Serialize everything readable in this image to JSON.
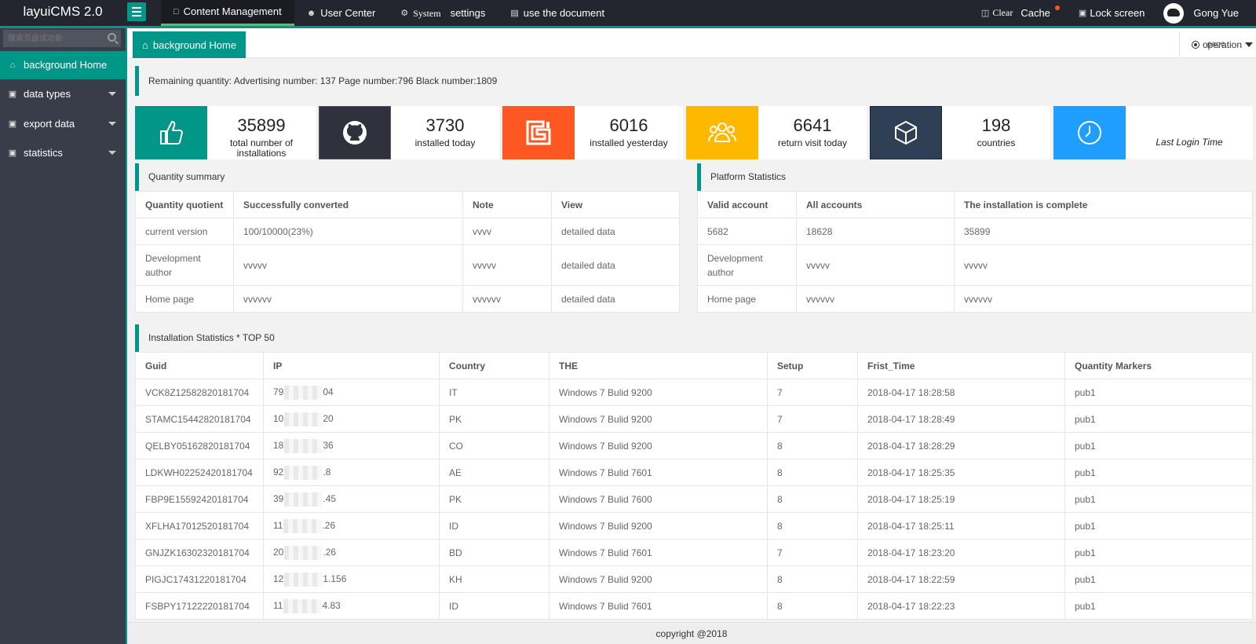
{
  "header": {
    "logo": "layuiCMS 2.0",
    "nav": [
      {
        "label": "Content Management",
        "icon": "document-icon"
      },
      {
        "label": "User Center",
        "icon": "users-icon"
      },
      {
        "label": "System",
        "label2": "settings",
        "icon": "gear-icon"
      },
      {
        "label": "use the document",
        "icon": "book-icon"
      }
    ],
    "clear_cache_prefix": "Clear",
    "clear_cache": "Cache",
    "lock_screen": "Lock screen",
    "user_name": "Gong Yue"
  },
  "sidebar": {
    "search_placeholder": "搜索页面或功能",
    "items": [
      {
        "label": "background Home",
        "icon": "home-icon"
      },
      {
        "label": "data types",
        "icon": "card-icon"
      },
      {
        "label": "export data",
        "icon": "card-icon"
      },
      {
        "label": "statistics",
        "icon": "card-icon"
      }
    ]
  },
  "tabs": {
    "home": "background Home",
    "operation": "operation",
    "operation_overlay": "page"
  },
  "notice": "Remaining quantity: Advertising number: 137 Page number:796 Black number:1809",
  "stats": [
    {
      "value": "35899",
      "label": "total number of installations",
      "color": "#009688",
      "icon": "thumbs-up-icon"
    },
    {
      "value": "3730",
      "label": "installed today",
      "color": "#2f4056",
      "icon": "github-icon"
    },
    {
      "value": "6016",
      "label": "installed yesterday",
      "color": "#ff5722",
      "icon": "logo-icon"
    },
    {
      "value": "6641",
      "label": "return visit today",
      "color": "#ffb800",
      "icon": "group-icon"
    },
    {
      "value": "198",
      "label": "countries",
      "color": "#2f4056",
      "icon": "cube-icon"
    },
    {
      "value": "",
      "label": "Last Login Time",
      "color": "#1e9fff",
      "icon": "clock-icon"
    }
  ],
  "quantity_summary": {
    "title": "Quantity summary",
    "headers": [
      "Quantity quotient",
      "Successfully converted",
      "Note",
      "View"
    ],
    "rows": [
      [
        "current version",
        "100/10000(23%)",
        "vvvv",
        "detailed data"
      ],
      [
        "Development author",
        "vvvvv",
        "vvvvv",
        "detailed data"
      ],
      [
        "Home page",
        "vvvvvv",
        "vvvvvv",
        "detailed data"
      ]
    ]
  },
  "platform_statistics": {
    "title": "Platform Statistics",
    "headers": [
      "Valid account",
      "All accounts",
      "The installation is complete"
    ],
    "rows": [
      [
        "5682",
        "18628",
        "35899"
      ],
      [
        "Development author",
        "vvvvv",
        "vvvvv"
      ],
      [
        "Home page",
        "vvvvvv",
        "vvvvvv"
      ]
    ]
  },
  "installation_stats": {
    "title": "Installation Statistics * TOP 50",
    "headers": [
      "Guid",
      "IP",
      "Country",
      "THE",
      "Setup",
      "Frist_Time",
      "Quantity Markers"
    ],
    "rows": [
      [
        "VCK8Z12582820181704",
        "79",
        "04",
        "IT",
        "Windows 7 Bulid 9200",
        "7",
        "2018-04-17 18:28:58",
        "pub1"
      ],
      [
        "STAMC15442820181704",
        "10",
        "20",
        "PK",
        "Windows 7 Bulid 9200",
        "7",
        "2018-04-17 18:28:49",
        "pub1"
      ],
      [
        "QELBY05162820181704",
        "18",
        "36",
        "CO",
        "Windows 7 Bulid 9200",
        "8",
        "2018-04-17 18:28:29",
        "pub1"
      ],
      [
        "LDKWH02252420181704",
        "92",
        ".8",
        "AE",
        "Windows 7 Bulid 7601",
        "8",
        "2018-04-17 18:25:35",
        "pub1"
      ],
      [
        "FBP9E15592420181704",
        "39",
        ".45",
        "PK",
        "Windows 7 Bulid 7600",
        "8",
        "2018-04-17 18:25:19",
        "pub1"
      ],
      [
        "XFLHA17012520181704",
        "11",
        ".26",
        "ID",
        "Windows 7 Bulid 9200",
        "8",
        "2018-04-17 18:25:11",
        "pub1"
      ],
      [
        "GNJZK16302320181704",
        "20",
        ".26",
        "BD",
        "Windows 7 Bulid 7601",
        "7",
        "2018-04-17 18:23:20",
        "pub1"
      ],
      [
        "PIGJC17431220181704",
        "12",
        "1.156",
        "KH",
        "Windows 7 Bulid 9200",
        "8",
        "2018-04-17 18:22:59",
        "pub1"
      ],
      [
        "FSBPY17122220181704",
        "11",
        "4.83",
        "ID",
        "Windows 7 Bulid 7601",
        "8",
        "2018-04-17 18:22:23",
        "pub1"
      ]
    ]
  },
  "footer": "copyright @2018"
}
